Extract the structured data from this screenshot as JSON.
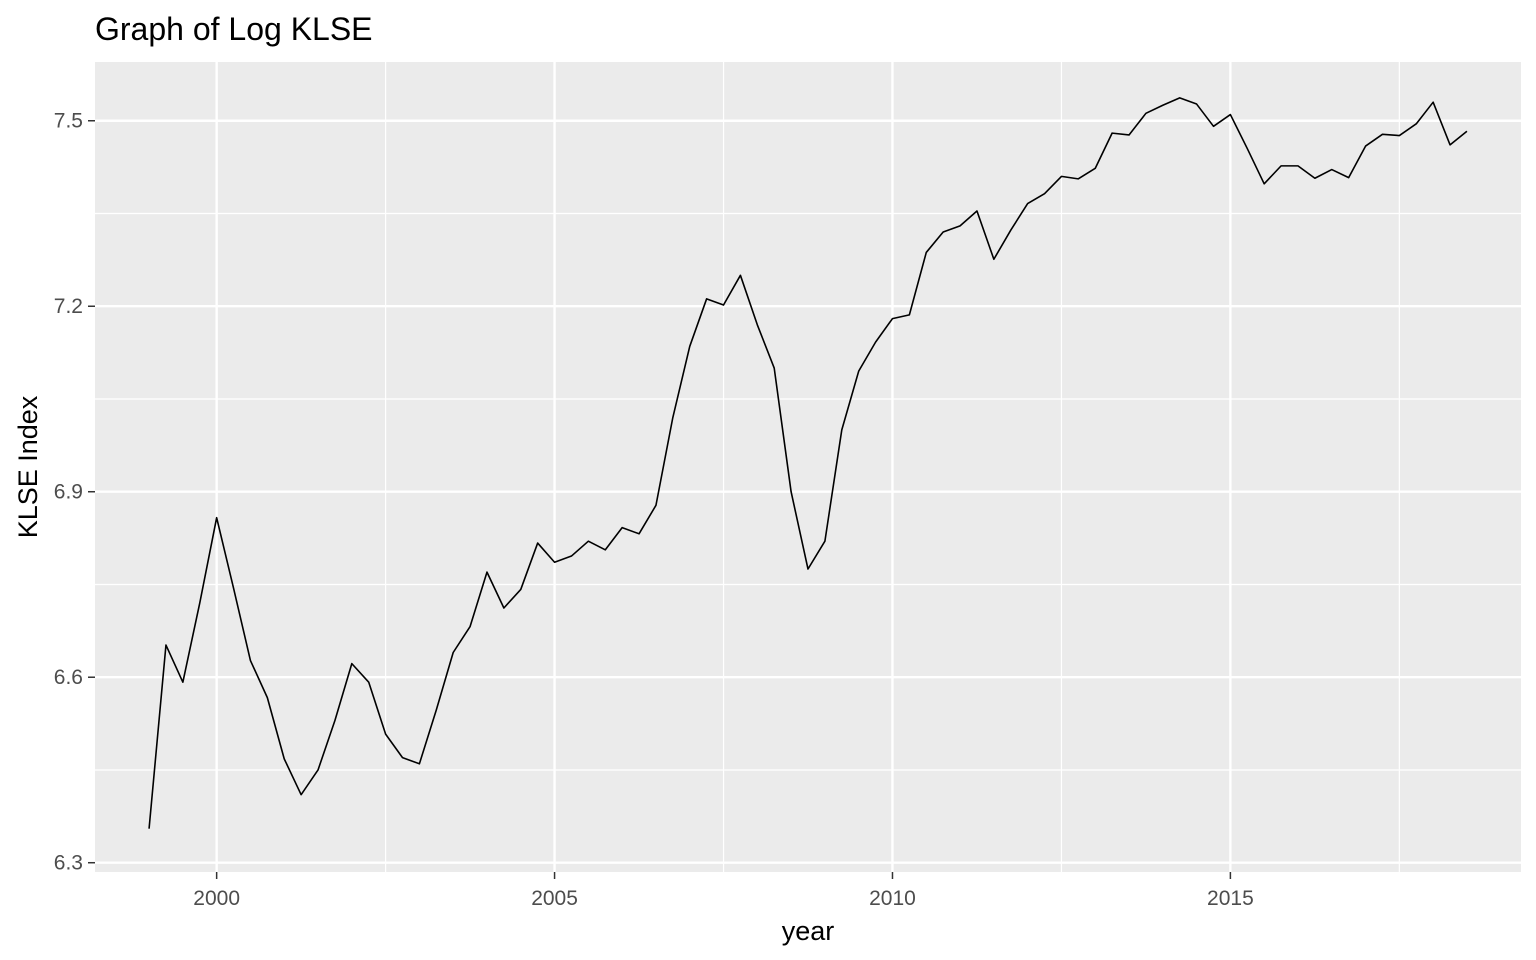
{
  "chart_data": {
    "type": "line",
    "title": "Graph of Log KLSE",
    "xlabel": "year",
    "ylabel": "KLSE Index",
    "xlim": [
      1998.2,
      2019.3
    ],
    "ylim": [
      6.285,
      7.595
    ],
    "x_ticks": [
      {
        "value": 2000,
        "label": "2000"
      },
      {
        "value": 2005,
        "label": "2005"
      },
      {
        "value": 2010,
        "label": "2010"
      },
      {
        "value": 2015,
        "label": "2015"
      }
    ],
    "x_minor_ticks": [
      2002.5,
      2007.5,
      2012.5,
      2017.5
    ],
    "y_ticks": [
      {
        "value": 6.3,
        "label": "6.3"
      },
      {
        "value": 6.6,
        "label": "6.6"
      },
      {
        "value": 6.9,
        "label": "6.9"
      },
      {
        "value": 7.2,
        "label": "7.2"
      },
      {
        "value": 7.5,
        "label": "7.5"
      }
    ],
    "y_minor_ticks": [
      6.45,
      6.75,
      7.05,
      7.35
    ],
    "grid": true,
    "colors": {
      "panel_background": "#ebebeb",
      "grid": "#ffffff",
      "line": "#000000",
      "tick_text": "#4d4d4d",
      "tick_mark": "#333333"
    },
    "series": [
      {
        "x": [
          1999.0,
          1999.25,
          1999.5,
          1999.75,
          2000.0,
          2000.25,
          2000.5,
          2000.75,
          2001.0,
          2001.25,
          2001.5,
          2001.75,
          2002.0,
          2002.25,
          2002.5,
          2002.75,
          2003.0,
          2003.25,
          2003.5,
          2003.75,
          2004.0,
          2004.25,
          2004.5,
          2004.75,
          2005.0,
          2005.25,
          2005.5,
          2005.75,
          2006.0,
          2006.25,
          2006.5,
          2006.75,
          2007.0,
          2007.25,
          2007.5,
          2007.75,
          2008.0,
          2008.25,
          2008.5,
          2008.75,
          2009.0,
          2009.25,
          2009.5,
          2009.75,
          2010.0,
          2010.25,
          2010.5,
          2010.75,
          2011.0,
          2011.25,
          2011.5,
          2011.75,
          2012.0,
          2012.25,
          2012.5,
          2012.75,
          2013.0,
          2013.25,
          2013.5,
          2013.75,
          2014.0,
          2014.25,
          2014.5,
          2014.75,
          2015.0,
          2015.25,
          2015.5,
          2015.75,
          2016.0,
          2016.25,
          2016.5,
          2016.75,
          2017.0,
          2017.25,
          2017.5,
          2017.75,
          2018.0,
          2018.25,
          2018.5
        ],
        "values": [
          6.355,
          6.652,
          6.592,
          6.72,
          6.858,
          6.744,
          6.627,
          6.567,
          6.468,
          6.41,
          6.45,
          6.53,
          6.622,
          6.592,
          6.508,
          6.47,
          6.46,
          6.547,
          6.64,
          6.682,
          6.77,
          6.712,
          6.742,
          6.817,
          6.786,
          6.796,
          6.82,
          6.806,
          6.842,
          6.832,
          6.878,
          7.02,
          7.135,
          7.212,
          7.202,
          7.25,
          7.17,
          7.1,
          6.9,
          6.775,
          6.82,
          7.0,
          7.095,
          7.142,
          7.18,
          7.186,
          7.287,
          7.32,
          7.33,
          7.354,
          7.276,
          7.323,
          7.366,
          7.382,
          7.41,
          7.406,
          7.423,
          7.48,
          7.477,
          7.512,
          7.525,
          7.537,
          7.527,
          7.491,
          7.51,
          7.455,
          7.398,
          7.427,
          7.427,
          7.407,
          7.421,
          7.408,
          7.459,
          7.478,
          7.476,
          7.495,
          7.53,
          7.461,
          7.483
        ]
      }
    ]
  }
}
